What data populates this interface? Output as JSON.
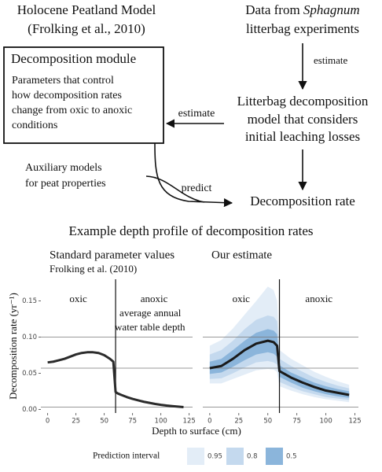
{
  "diagram": {
    "model_title": [
      "Holocene Peatland Model",
      "(Frolking et al., 2010)"
    ],
    "data_source": {
      "prefix": "Data from",
      "species": "Sphagnum",
      "suffix": "litterbag experiments"
    },
    "arrow_estimate_down": "estimate",
    "module_title": "Decomposition module",
    "module_text": [
      "Parameters that control",
      "how decomposition rates",
      "change from oxic to anoxic",
      "conditions"
    ],
    "arrow_estimate_left": "estimate",
    "litterbag_model": [
      "Litterbag decomposition",
      "model that considers",
      "initial leaching losses"
    ],
    "auxiliary": [
      "Auxiliary  models",
      "for peat properties"
    ],
    "arrow_predict": "predict",
    "output": "Decomposition rate"
  },
  "figure": {
    "title": "Example depth profile of decomposition rates",
    "xlabel": "Depth to surface (cm)",
    "ylabel": "Decomposition rate (yr⁻¹)"
  },
  "chart_data": [
    {
      "type": "line",
      "title": "Standard parameter values",
      "subtitle": "Frolking et al. (2010)",
      "zone_labels": [
        "oxic",
        "anoxic"
      ],
      "vline_label": [
        "average annual",
        "water table depth"
      ],
      "xlim": [
        -6,
        128
      ],
      "ylim": [
        -0.005,
        0.18
      ],
      "xticks": [
        0,
        25,
        50,
        75,
        100,
        125
      ],
      "yticks": [
        {
          "value": 0,
          "label": "0.00"
        },
        0.05,
        {
          "value": 0.1,
          "label": "0.10"
        },
        0.15
      ],
      "hlines": [
        0.1,
        0.057,
        0.003
      ],
      "vline": 60,
      "color": "#2b2b2b",
      "x": [
        0,
        5,
        10,
        15,
        20,
        25,
        30,
        35,
        40,
        45,
        50,
        55,
        58,
        60,
        62,
        65,
        70,
        75,
        80,
        85,
        90,
        95,
        100,
        105,
        110,
        115,
        120
      ],
      "values": [
        0.065,
        0.066,
        0.068,
        0.07,
        0.073,
        0.076,
        0.078,
        0.079,
        0.079,
        0.078,
        0.075,
        0.07,
        0.066,
        0.024,
        0.022,
        0.02,
        0.017,
        0.0145,
        0.0125,
        0.0105,
        0.009,
        0.0075,
        0.0063,
        0.0053,
        0.0045,
        0.0038,
        0.0032
      ]
    },
    {
      "type": "band",
      "title": "Our estimate",
      "zone_labels": [
        "oxic",
        "anoxic"
      ],
      "xlim": [
        -6,
        128
      ],
      "ylim": [
        -0.005,
        0.18
      ],
      "xticks": [
        0,
        25,
        50,
        75,
        100,
        125
      ],
      "hlines": [
        0.1,
        0.057,
        0.003
      ],
      "vline": 60,
      "legend_title": "Prediction interval",
      "x": [
        0,
        10,
        20,
        30,
        40,
        50,
        55,
        58,
        60,
        70,
        80,
        90,
        100,
        110,
        120
      ],
      "median": {
        "color": "#1a1a1a",
        "values": [
          0.057,
          0.06,
          0.07,
          0.082,
          0.091,
          0.095,
          0.093,
          0.088,
          0.053,
          0.044,
          0.037,
          0.031,
          0.026,
          0.023,
          0.02
        ]
      },
      "series": [
        {
          "name": "0.95",
          "color": "#e3edf7",
          "lower": [
            0.036,
            0.036,
            0.042,
            0.048,
            0.054,
            0.056,
            0.055,
            0.052,
            0.032,
            0.026,
            0.021,
            0.017,
            0.014,
            0.012,
            0.01
          ],
          "upper": [
            0.088,
            0.096,
            0.112,
            0.131,
            0.15,
            0.17,
            0.165,
            0.15,
            0.082,
            0.07,
            0.061,
            0.052,
            0.045,
            0.039,
            0.034
          ]
        },
        {
          "name": "0.8",
          "color": "#c4d9ee",
          "lower": [
            0.042,
            0.043,
            0.05,
            0.058,
            0.065,
            0.067,
            0.065,
            0.062,
            0.038,
            0.031,
            0.025,
            0.021,
            0.017,
            0.015,
            0.013
          ],
          "upper": [
            0.076,
            0.082,
            0.095,
            0.111,
            0.124,
            0.13,
            0.128,
            0.122,
            0.07,
            0.06,
            0.052,
            0.044,
            0.038,
            0.033,
            0.029
          ]
        },
        {
          "name": "0.5",
          "color": "#8bb5db",
          "lower": [
            0.049,
            0.051,
            0.059,
            0.068,
            0.076,
            0.079,
            0.077,
            0.073,
            0.045,
            0.037,
            0.03,
            0.025,
            0.021,
            0.018,
            0.016
          ],
          "upper": [
            0.066,
            0.07,
            0.082,
            0.095,
            0.106,
            0.111,
            0.109,
            0.104,
            0.061,
            0.051,
            0.044,
            0.037,
            0.032,
            0.028,
            0.025
          ]
        }
      ]
    }
  ]
}
